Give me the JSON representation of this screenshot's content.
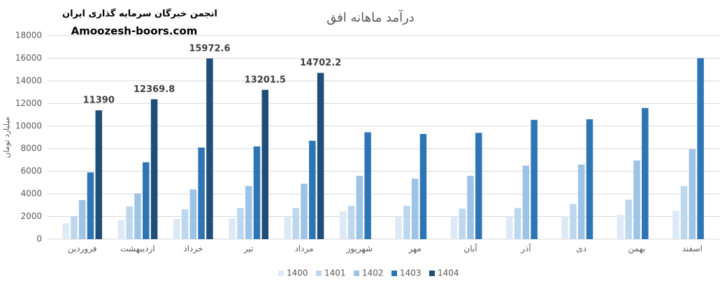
{
  "chart_data": {
    "type": "bar",
    "title": "درآمد ماهانه افق",
    "watermark": "انجمن خبرگان سرمایه گذاری ایران",
    "website": "Amoozesh-boors.com",
    "ylabel": "میلیارد تومان",
    "categories": [
      "فروردین",
      "اردیبهشت",
      "خرداد",
      "تیر",
      "مرداد",
      "شهریور",
      "مهر",
      "آبان",
      "آذر",
      "دی",
      "بهمن",
      "اسفند"
    ],
    "series": [
      {
        "name": "1400",
        "color": "#dde9f5",
        "values": [
          1400,
          1700,
          1800,
          1850,
          1950,
          2450,
          1950,
          1950,
          2000,
          2050,
          2150,
          2500
        ]
      },
      {
        "name": "1401",
        "color": "#bdd7ee",
        "values": [
          2000,
          2900,
          2650,
          2750,
          2750,
          2950,
          2950,
          2700,
          2750,
          3100,
          3500,
          4700
        ]
      },
      {
        "name": "1402",
        "color": "#9dc3e6",
        "values": [
          3450,
          4050,
          4400,
          4700,
          4900,
          5600,
          5350,
          5600,
          6500,
          6600,
          6950,
          7950
        ]
      },
      {
        "name": "1403",
        "color": "#2e75b6",
        "values": [
          5900,
          6800,
          8100,
          8200,
          8700,
          9450,
          9300,
          9400,
          10550,
          10600,
          11600,
          16000
        ]
      },
      {
        "name": "1404",
        "color": "#1f4e79",
        "show_values": true,
        "values": [
          11390,
          12369.8,
          15972.6,
          13201.5,
          14702.2,
          null,
          null,
          null,
          null,
          null,
          null,
          null
        ]
      }
    ],
    "ylim": [
      0,
      18000
    ],
    "yticks": [
      0,
      2000,
      4000,
      6000,
      8000,
      10000,
      12000,
      14000,
      16000,
      18000
    ],
    "grid": true,
    "legend": "bottom"
  }
}
